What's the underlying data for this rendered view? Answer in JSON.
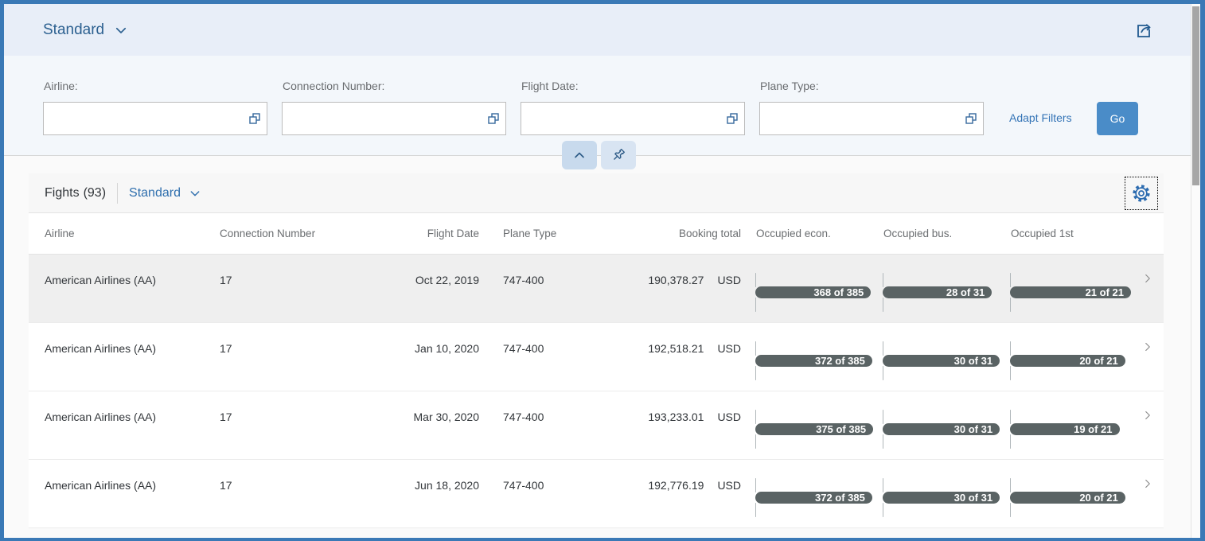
{
  "theme": {
    "frame": "#3a79b6",
    "header_bg": "#e8eef8",
    "filter_bg": "#f3f7fb",
    "header_link": "#2d6191",
    "link": "#3474b6",
    "go_bg": "#4a8cc8",
    "progress_fill": "#5a6364",
    "row_highlight": "#efefef",
    "icon_blue": "#2d6cb0"
  },
  "icons": {
    "header_share": "share-icon",
    "value_help": "value-help-squares-icon",
    "collapse_filter": "chevron-up-icon",
    "pin_filter": "pushpin-icon",
    "table_settings": "gear-icon",
    "row_navigation": "chevron-right-icon",
    "variant_dropdown": "chevron-down-icon"
  },
  "app": {
    "header": {
      "variant_title": "Standard"
    },
    "filter_bar": {
      "fields": [
        {
          "label": "Airline:",
          "value": ""
        },
        {
          "label": "Connection Number:",
          "value": ""
        },
        {
          "label": "Flight Date:",
          "value": ""
        },
        {
          "label": "Plane Type:",
          "value": ""
        }
      ],
      "adapt_filters_label": "Adapt Filters",
      "go_label": "Go"
    },
    "table": {
      "title": "Fights",
      "count": "(93)",
      "variant_title": "Standard",
      "columns": [
        "Airline",
        "Connection Number",
        "Flight Date",
        "Plane Type",
        "Booking total",
        "Occupied econ.",
        "Occupied bus.",
        "Occupied 1st"
      ],
      "rows": [
        {
          "airline": "American Airlines (AA)",
          "connection_number": "17",
          "flight_date": "Oct 22, 2019",
          "plane_type": "747-400",
          "booking_total": "190,378.27",
          "currency": "USD",
          "occupied_econ": {
            "label": "368 of 385",
            "value": 368,
            "max": 385
          },
          "occupied_bus": {
            "label": "28 of 31",
            "value": 28,
            "max": 31
          },
          "occupied_first": {
            "label": "21 of 21",
            "value": 21,
            "max": 21
          },
          "highlighted": true
        },
        {
          "airline": "American Airlines (AA)",
          "connection_number": "17",
          "flight_date": "Jan 10, 2020",
          "plane_type": "747-400",
          "booking_total": "192,518.21",
          "currency": "USD",
          "occupied_econ": {
            "label": "372 of 385",
            "value": 372,
            "max": 385
          },
          "occupied_bus": {
            "label": "30 of 31",
            "value": 30,
            "max": 31
          },
          "occupied_first": {
            "label": "20 of 21",
            "value": 20,
            "max": 21
          },
          "highlighted": false
        },
        {
          "airline": "American Airlines (AA)",
          "connection_number": "17",
          "flight_date": "Mar 30, 2020",
          "plane_type": "747-400",
          "booking_total": "193,233.01",
          "currency": "USD",
          "occupied_econ": {
            "label": "375 of 385",
            "value": 375,
            "max": 385
          },
          "occupied_bus": {
            "label": "30 of 31",
            "value": 30,
            "max": 31
          },
          "occupied_first": {
            "label": "19 of 21",
            "value": 19,
            "max": 21
          },
          "highlighted": false
        },
        {
          "airline": "American Airlines (AA)",
          "connection_number": "17",
          "flight_date": "Jun 18, 2020",
          "plane_type": "747-400",
          "booking_total": "192,776.19",
          "currency": "USD",
          "occupied_econ": {
            "label": "372 of 385",
            "value": 372,
            "max": 385
          },
          "occupied_bus": {
            "label": "30 of 31",
            "value": 30,
            "max": 31
          },
          "occupied_first": {
            "label": "20 of 21",
            "value": 20,
            "max": 21
          },
          "highlighted": false
        }
      ]
    }
  }
}
